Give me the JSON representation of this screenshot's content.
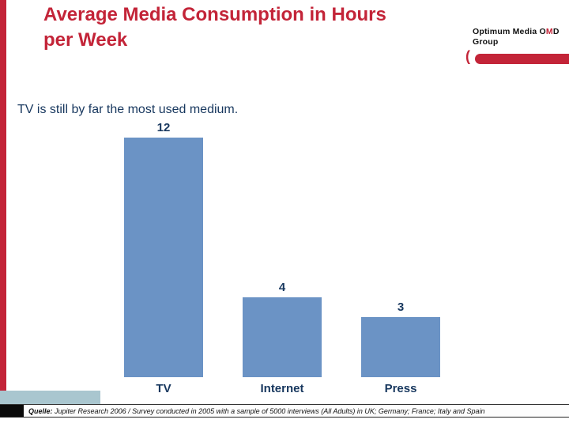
{
  "slide": {
    "title_line1": "Average Media Consumption in Hours",
    "title_line2": "per Week",
    "subtitle": "TV is still by far the most used medium."
  },
  "logo": {
    "prefix": "Optimum Media",
    "o": "O",
    "m": "M",
    "d": "D",
    "group": "Group"
  },
  "footer": {
    "label": "Quelle:",
    "text": "Jupiter Research 2006 / Survey conducted in 2005 with a sample of 5000 interviews (All Adults) in UK; Germany; France; Italy and Spain"
  },
  "chart_data": {
    "type": "bar",
    "categories": [
      "TV",
      "Internet",
      "Press"
    ],
    "values": [
      12,
      4,
      3
    ],
    "title": "Average Media Consumption in Hours per Week",
    "xlabel": "",
    "ylabel": "",
    "ylim": [
      0,
      12
    ],
    "grid": false,
    "legend": false,
    "bar_color": "#6B93C5"
  },
  "colors": {
    "accent_red": "#C32438",
    "navy": "#17375E",
    "bar_blue": "#6B93C5",
    "footer_accent": "#A9C6CF"
  }
}
